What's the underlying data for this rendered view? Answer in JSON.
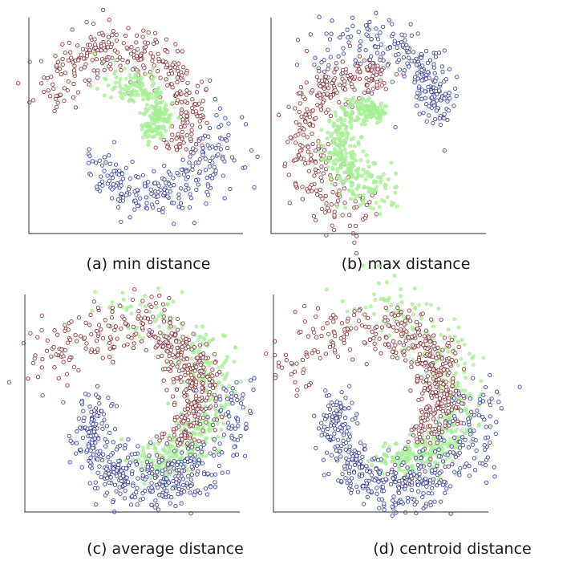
{
  "figure": {
    "colors": {
      "red": "#7a1f24",
      "blue": "#232b92",
      "green": "#a7ee96",
      "axis": "#555555"
    }
  },
  "chart_data": [
    {
      "type": "scatter",
      "caption": "(a) min distance",
      "clusters": [
        {
          "color": "red",
          "arms": [
            {
              "start": 130,
              "end": 275
            },
            {
              "start": 250,
              "end": 310
            }
          ]
        },
        {
          "color": "green",
          "arms": [
            {
              "start": 10,
              "end": 155
            }
          ]
        },
        {
          "color": "blue",
          "arms": [
            {
              "start": 130,
              "end": 275
            }
          ]
        }
      ]
    },
    {
      "type": "scatter",
      "caption": "(b) max distance",
      "clusters": [
        {
          "color": "blue",
          "arms": [
            {
              "start": 185,
              "end": 295
            },
            {
              "start": 170,
              "end": 215
            }
          ]
        },
        {
          "color": "red",
          "arms": [
            {
              "start": 130,
              "end": 195
            },
            {
              "start": 175,
              "end": 300
            }
          ]
        },
        {
          "color": "green",
          "arms": [
            {
              "start": 10,
              "end": 200
            },
            {
              "start": 120,
              "end": 175
            }
          ]
        }
      ]
    },
    {
      "type": "scatter",
      "caption": "(c) average distance",
      "clusters": [
        {
          "color": "green",
          "arms": [
            {
              "start": 150,
              "end": 320
            },
            {
              "start": 130,
              "end": 210
            }
          ]
        },
        {
          "color": "red",
          "arms": [
            {
              "start": 120,
              "end": 245
            },
            {
              "start": 170,
              "end": 320
            }
          ]
        },
        {
          "color": "blue",
          "arms": [
            {
              "start": 110,
              "end": 260
            },
            {
              "start": 170,
              "end": 310
            }
          ]
        }
      ]
    },
    {
      "type": "scatter",
      "caption": "(d) centroid distance",
      "clusters": [
        {
          "color": "green",
          "arms": [
            {
              "start": 150,
              "end": 320
            },
            {
              "start": 130,
              "end": 215
            }
          ]
        },
        {
          "color": "red",
          "arms": [
            {
              "start": 120,
              "end": 245
            },
            {
              "start": 170,
              "end": 320
            }
          ]
        },
        {
          "color": "blue",
          "arms": [
            {
              "start": 110,
              "end": 260
            },
            {
              "start": 175,
              "end": 310
            }
          ]
        }
      ]
    }
  ]
}
